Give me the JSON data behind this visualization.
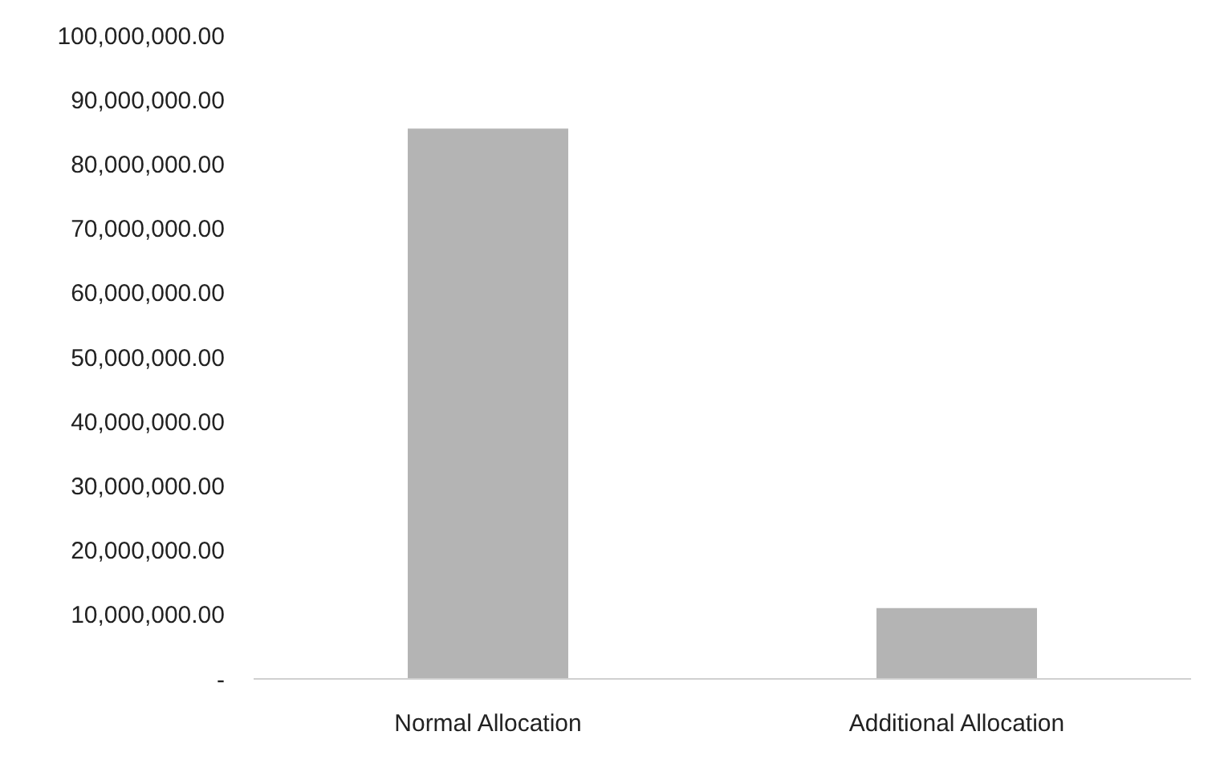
{
  "chart_data": {
    "type": "bar",
    "categories": [
      "Normal Allocation",
      "Additional Allocation"
    ],
    "values": [
      85500000,
      11000000
    ],
    "color": "#b4b4b4",
    "ylim": [
      0,
      100000000
    ],
    "yticks": [
      {
        "value": 0,
        "label": "-"
      },
      {
        "value": 10000000,
        "label": "10,000,000.00"
      },
      {
        "value": 20000000,
        "label": "20,000,000.00"
      },
      {
        "value": 30000000,
        "label": "30,000,000.00"
      },
      {
        "value": 40000000,
        "label": "40,000,000.00"
      },
      {
        "value": 50000000,
        "label": "50,000,000.00"
      },
      {
        "value": 60000000,
        "label": "60,000,000.00"
      },
      {
        "value": 70000000,
        "label": "70,000,000.00"
      },
      {
        "value": 80000000,
        "label": "80,000,000.00"
      },
      {
        "value": 90000000,
        "label": "90,000,000.00"
      },
      {
        "value": 100000000,
        "label": "100,000,000.00"
      }
    ],
    "grid": false,
    "legend": false
  }
}
